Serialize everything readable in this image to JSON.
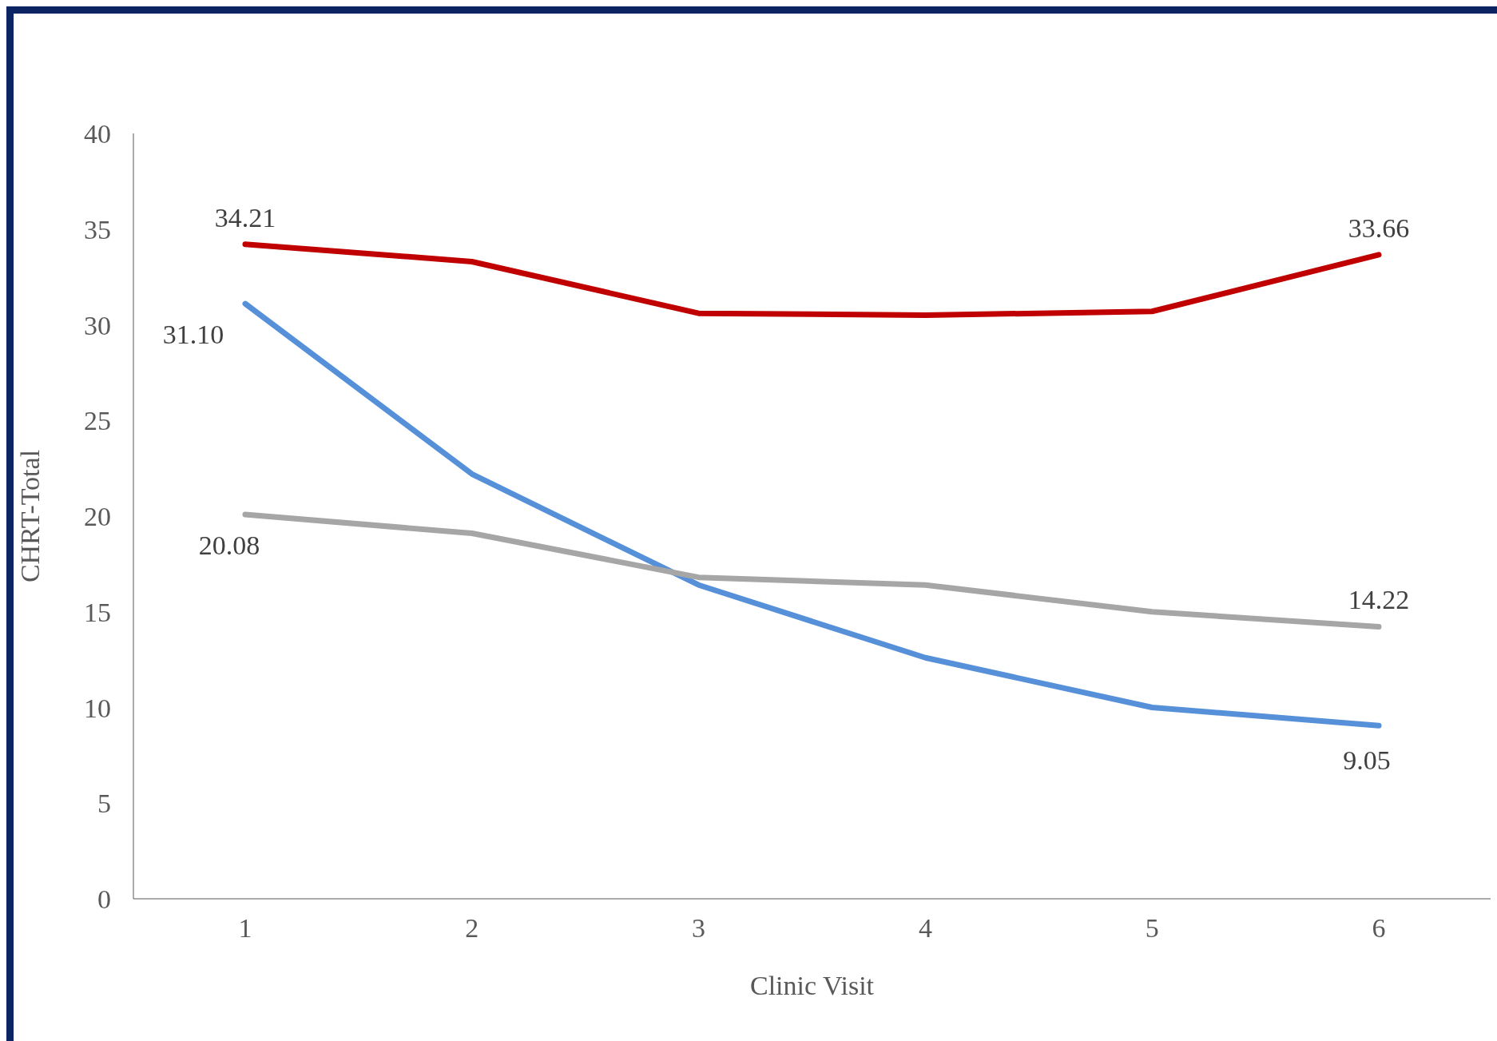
{
  "chart_data": {
    "type": "line",
    "xlabel": "Clinic Visit",
    "ylabel": "CHRT-Total",
    "categories": [
      "1",
      "2",
      "3",
      "4",
      "5",
      "6"
    ],
    "series": [
      {
        "color": "#c00000",
        "values": [
          34.21,
          33.3,
          30.6,
          30.5,
          30.7,
          33.66
        ],
        "value_labels": [
          "34.21",
          null,
          null,
          null,
          null,
          "33.66"
        ]
      },
      {
        "color": "#5590d8",
        "values": [
          31.1,
          22.2,
          16.4,
          12.6,
          10.0,
          9.05
        ],
        "value_labels": [
          "31.10",
          null,
          null,
          null,
          null,
          "9.05"
        ]
      },
      {
        "color": "#a6a6a6",
        "values": [
          20.08,
          19.1,
          16.8,
          16.4,
          15.0,
          14.22
        ],
        "value_labels": [
          "20.08",
          null,
          null,
          null,
          null,
          "14.22"
        ]
      }
    ],
    "ylim": [
      0,
      40
    ],
    "yticks": [
      0,
      5,
      10,
      15,
      20,
      25,
      30,
      35,
      40
    ],
    "grid": false,
    "legend": false,
    "marker": "none",
    "line_style": "solid"
  }
}
